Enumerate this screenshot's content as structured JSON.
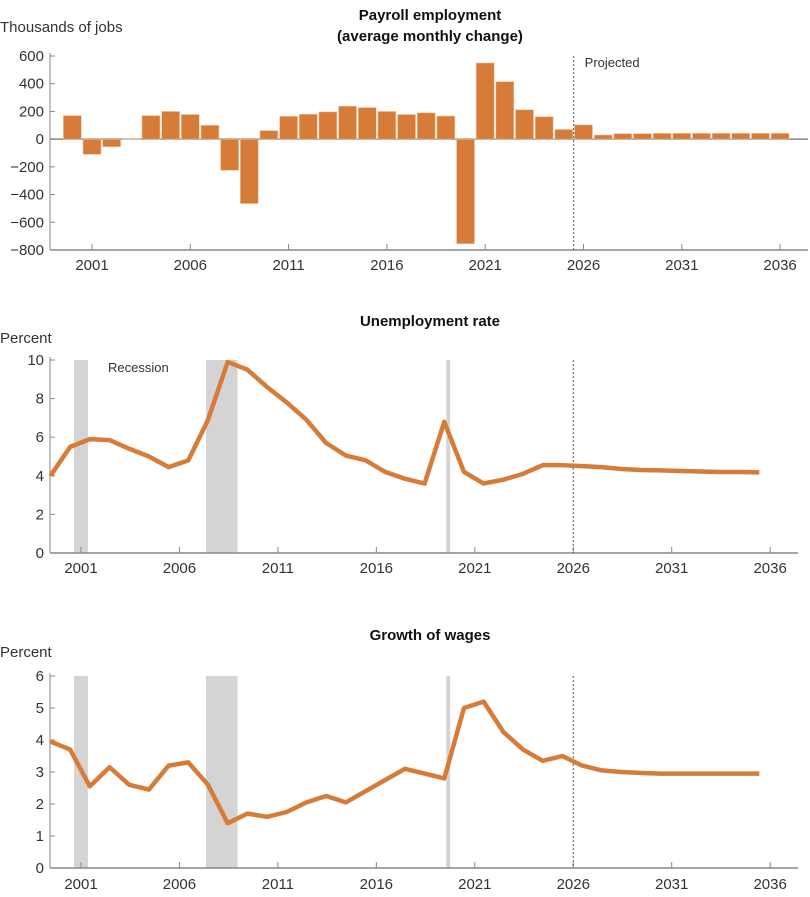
{
  "colors": {
    "series": "#D77B38",
    "recession": "#D4D4D4",
    "axis": "#888888"
  },
  "chart_data": [
    {
      "type": "bar",
      "title": "Payroll employment",
      "subtitle": "(average monthly change)",
      "ylabel": "Thousands of jobs",
      "ylim": [
        -800,
        600
      ],
      "yticks": [
        600,
        400,
        200,
        0,
        -200,
        -400,
        -600,
        -800
      ],
      "xticks": [
        2001,
        2006,
        2011,
        2016,
        2021,
        2026,
        2031,
        2036
      ],
      "projected_label": "Projected",
      "projected_start": 2025.5,
      "categories": [
        2000,
        2001,
        2002,
        2003,
        2004,
        2005,
        2006,
        2007,
        2008,
        2009,
        2010,
        2011,
        2012,
        2013,
        2014,
        2015,
        2016,
        2017,
        2018,
        2019,
        2020,
        2021,
        2022,
        2023,
        2024,
        2025,
        2026,
        2027,
        2028,
        2029,
        2030,
        2031,
        2032,
        2033,
        2034,
        2035,
        2036
      ],
      "values": [
        170,
        -110,
        -55,
        -5,
        170,
        200,
        178,
        100,
        -225,
        -465,
        62,
        165,
        180,
        197,
        238,
        228,
        200,
        178,
        190,
        167,
        -755,
        550,
        415,
        212,
        162,
        70,
        103,
        30,
        40,
        40,
        42,
        42,
        42,
        42,
        42,
        42,
        42
      ]
    },
    {
      "type": "line",
      "title": "Unemployment rate",
      "ylabel": "Percent",
      "ylim": [
        0,
        10
      ],
      "yticks": [
        10,
        8,
        6,
        4,
        2,
        0
      ],
      "xticks": [
        2001,
        2006,
        2011,
        2016,
        2021,
        2026,
        2031,
        2036
      ],
      "recession_label": "Recession",
      "recessions": [
        [
          2001.2,
          2001.9
        ],
        [
          2007.9,
          2009.5
        ],
        [
          2020.1,
          2020.3
        ]
      ],
      "projected_start": 2026,
      "x": [
        2000,
        2001,
        2002,
        2003,
        2004,
        2005,
        2006,
        2007,
        2008,
        2009,
        2010,
        2011,
        2012,
        2013,
        2014,
        2015,
        2016,
        2017,
        2018,
        2019,
        2020,
        2021,
        2022,
        2023,
        2024,
        2025,
        2026,
        2027,
        2028,
        2029,
        2030,
        2031,
        2032,
        2033,
        2034,
        2035,
        2036
      ],
      "values": [
        4.0,
        5.5,
        5.9,
        5.85,
        5.4,
        5.0,
        4.45,
        4.8,
        6.9,
        9.9,
        9.5,
        8.6,
        7.8,
        6.9,
        5.7,
        5.05,
        4.8,
        4.2,
        3.85,
        3.6,
        6.8,
        4.2,
        3.6,
        3.8,
        4.1,
        4.55,
        4.55,
        4.5,
        4.45,
        4.35,
        4.3,
        4.28,
        4.25,
        4.22,
        4.2,
        4.2,
        4.18
      ]
    },
    {
      "type": "line",
      "title": "Growth of wages",
      "ylabel": "Percent",
      "ylim": [
        0,
        6
      ],
      "yticks": [
        6,
        5,
        4,
        3,
        2,
        1,
        0
      ],
      "xticks": [
        2001,
        2006,
        2011,
        2016,
        2021,
        2026,
        2031,
        2036
      ],
      "recessions": [
        [
          2001.2,
          2001.9
        ],
        [
          2007.9,
          2009.5
        ],
        [
          2020.1,
          2020.3
        ]
      ],
      "projected_start": 2026,
      "x": [
        2000,
        2001,
        2002,
        2003,
        2004,
        2005,
        2006,
        2007,
        2008,
        2009,
        2010,
        2011,
        2012,
        2013,
        2014,
        2015,
        2016,
        2017,
        2018,
        2019,
        2020,
        2021,
        2022,
        2023,
        2024,
        2025,
        2026,
        2027,
        2028,
        2029,
        2030,
        2031,
        2032,
        2033,
        2034,
        2035,
        2036
      ],
      "values": [
        3.95,
        3.7,
        2.55,
        3.15,
        2.6,
        2.45,
        3.2,
        3.3,
        2.6,
        1.4,
        1.7,
        1.6,
        1.75,
        2.05,
        2.25,
        2.05,
        2.4,
        2.75,
        3.1,
        2.95,
        2.8,
        5.0,
        5.2,
        4.25,
        3.7,
        3.35,
        3.5,
        3.2,
        3.05,
        3.0,
        2.97,
        2.95,
        2.95,
        2.95,
        2.95,
        2.95,
        2.95
      ]
    }
  ]
}
